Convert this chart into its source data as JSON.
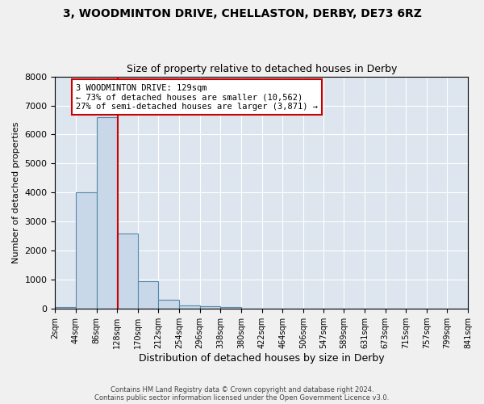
{
  "title": "3, WOODMINTON DRIVE, CHELLASTON, DERBY, DE73 6RZ",
  "subtitle": "Size of property relative to detached houses in Derby",
  "xlabel": "Distribution of detached houses by size in Derby",
  "ylabel": "Number of detached properties",
  "annotation_line1": "3 WOODMINTON DRIVE: 129sqm",
  "annotation_line2": "← 73% of detached houses are smaller (10,562)",
  "annotation_line3": "27% of semi-detached houses are larger (3,871) →",
  "property_size": 129,
  "bar_color": "#c8d8e8",
  "bar_edge_color": "#5588aa",
  "vline_color": "#cc0000",
  "background_color": "#dde6ef",
  "annotation_box_edge_color": "#cc0000",
  "bin_labels": [
    "2sqm",
    "44sqm",
    "86sqm",
    "128sqm",
    "170sqm",
    "212sqm",
    "254sqm",
    "296sqm",
    "338sqm",
    "380sqm",
    "422sqm",
    "464sqm",
    "506sqm",
    "547sqm",
    "589sqm",
    "631sqm",
    "673sqm",
    "715sqm",
    "757sqm",
    "799sqm",
    "841sqm"
  ],
  "bin_edges": [
    2,
    44,
    86,
    128,
    170,
    212,
    254,
    296,
    338,
    380,
    422,
    464,
    506,
    547,
    589,
    631,
    673,
    715,
    757,
    799,
    841
  ],
  "bar_heights": [
    75,
    4000,
    6600,
    2600,
    950,
    310,
    110,
    100,
    70,
    0,
    0,
    0,
    0,
    0,
    0,
    0,
    0,
    0,
    0,
    0
  ],
  "ylim": [
    0,
    8000
  ],
  "yticks": [
    0,
    1000,
    2000,
    3000,
    4000,
    5000,
    6000,
    7000,
    8000
  ],
  "footer_line1": "Contains HM Land Registry data © Crown copyright and database right 2024.",
  "footer_line2": "Contains public sector information licensed under the Open Government Licence v3.0."
}
